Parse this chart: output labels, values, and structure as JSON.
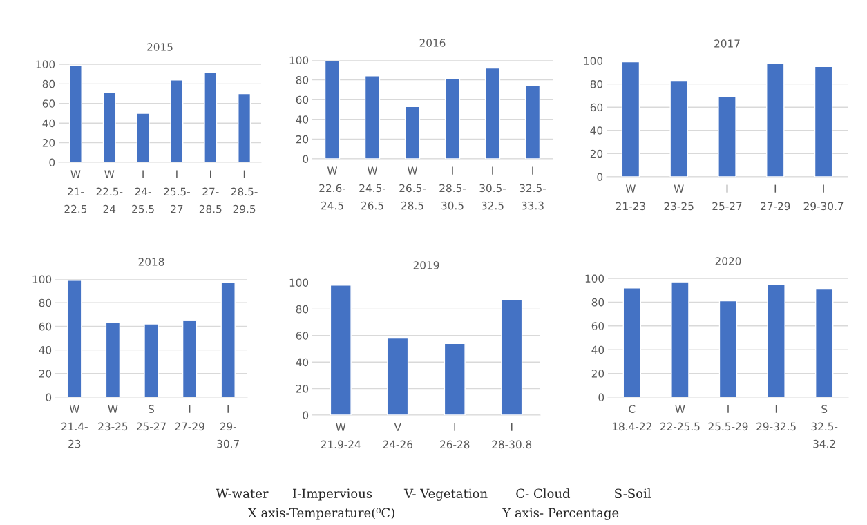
{
  "chart_data": [
    {
      "type": "bar",
      "title": "2015",
      "categories": [
        "W\n21-\n22.5",
        "W\n22.5-\n24",
        "I\n24-\n25.5",
        "I\n25.5-\n27",
        "I\n27-\n28.5",
        "I\n28.5-\n29.5"
      ],
      "values": [
        99,
        71,
        50,
        84,
        92,
        70
      ],
      "color": "#4472c4",
      "ylim": [
        0,
        100
      ],
      "yticks": [
        0,
        20,
        40,
        60,
        80,
        100
      ],
      "grid": "y",
      "legend": false
    },
    {
      "type": "bar",
      "title": "2016",
      "categories": [
        "W\n22.6-\n24.5",
        "W\n24.5-\n26.5",
        "W\n26.5-\n28.5",
        "I\n28.5-\n30.5",
        "I\n30.5-\n32.5",
        "I\n32.5-\n33.3"
      ],
      "values": [
        99,
        84,
        53,
        81,
        92,
        74
      ],
      "color": "#4472c4",
      "ylim": [
        0,
        100
      ],
      "yticks": [
        0,
        20,
        40,
        60,
        80,
        100
      ],
      "grid": "y",
      "legend": false
    },
    {
      "type": "bar",
      "title": "2017",
      "categories": [
        "W\n21-23",
        "W\n23-25",
        "I\n25-27",
        "I\n27-29",
        "I\n29-30.7"
      ],
      "values": [
        99,
        83,
        69,
        98,
        95
      ],
      "color": "#4472c4",
      "ylim": [
        0,
        100
      ],
      "yticks": [
        0,
        20,
        40,
        60,
        80,
        100
      ],
      "grid": "y",
      "legend": false
    },
    {
      "type": "bar",
      "title": "2018",
      "categories": [
        "W\n21.4-\n23",
        "W\n23-25\n",
        "S\n25-27\n",
        "I\n27-29\n",
        "I\n29-\n30.7"
      ],
      "values": [
        99,
        63,
        62,
        65,
        97
      ],
      "color": "#4472c4",
      "ylim": [
        0,
        100
      ],
      "yticks": [
        0,
        20,
        40,
        60,
        80,
        100
      ],
      "grid": "y",
      "legend": false
    },
    {
      "type": "bar",
      "title": "2019",
      "categories": [
        "W\n21.9-24",
        "V\n24-26",
        "I\n26-28",
        "I\n28-30.8"
      ],
      "values": [
        98,
        58,
        54,
        87
      ],
      "color": "#4472c4",
      "ylim": [
        0,
        100
      ],
      "yticks": [
        0,
        20,
        40,
        60,
        80,
        100
      ],
      "grid": "y",
      "legend": false
    },
    {
      "type": "bar",
      "title": "2020",
      "categories": [
        "C\n18.4-22\n",
        "W\n22-25.5\n",
        "I\n25.5-29\n",
        "I\n29-32.5\n",
        "S\n32.5-\n34.2"
      ],
      "values": [
        92,
        97,
        81,
        95,
        91
      ],
      "color": "#4472c4",
      "ylim": [
        0,
        100
      ],
      "yticks": [
        0,
        20,
        40,
        60,
        80,
        100
      ],
      "grid": "y",
      "legend": false,
      "annotations": [
        "W-water      I-Impervious        V- Vegetation       C- Cloud           S-Soil",
        "X axis-Temperature(⁰C)                           Y axis- Percentage"
      ]
    }
  ]
}
